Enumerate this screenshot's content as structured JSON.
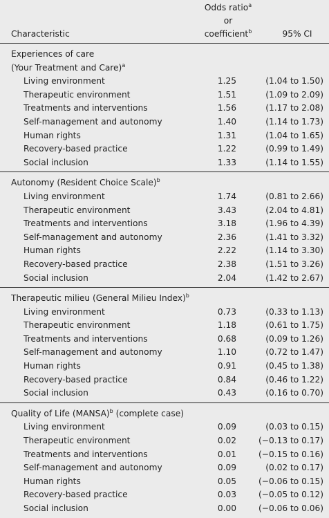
{
  "header": {
    "characteristic": "Characteristic",
    "estimate": [
      [
        {
          "text": "Odds ratio"
        },
        {
          "sup": "a"
        }
      ],
      [
        {
          "text": "or"
        }
      ],
      [
        {
          "text": "coefficient"
        },
        {
          "sup": "b"
        }
      ]
    ],
    "ci": "95% CI"
  },
  "sections": [
    {
      "title_lines": [
        [
          {
            "text": "Experiences of care"
          }
        ],
        [
          {
            "text": "(Your Treatment and Care)"
          },
          {
            "sup": "a"
          }
        ]
      ],
      "rows": [
        [
          "Living environment",
          "1.25",
          "(1.04 to 1.50)"
        ],
        [
          "Therapeutic environment",
          "1.51",
          "(1.09 to 2.09)"
        ],
        [
          "Treatments and interventions",
          "1.56",
          "(1.17 to 2.08)"
        ],
        [
          "Self-management and autonomy",
          "1.40",
          "(1.14 to 1.73)"
        ],
        [
          "Human rights",
          "1.31",
          "(1.04 to 1.65)"
        ],
        [
          "Recovery-based practice",
          "1.22",
          "(0.99 to 1.49)"
        ],
        [
          "Social inclusion",
          "1.33",
          "(1.14 to 1.55)"
        ]
      ]
    },
    {
      "title_lines": [
        [
          {
            "text": "Autonomy (Resident Choice Scale)"
          },
          {
            "sup": "b"
          }
        ]
      ],
      "rows": [
        [
          "Living environment",
          "1.74",
          "(0.81 to 2.66)"
        ],
        [
          "Therapeutic environment",
          "3.43",
          "(2.04 to 4.81)"
        ],
        [
          "Treatments and interventions",
          "3.18",
          "(1.96 to 4.39)"
        ],
        [
          "Self-management and autonomy",
          "2.36",
          "(1.41 to 3.32)"
        ],
        [
          "Human rights",
          "2.22",
          "(1.14 to 3.30)"
        ],
        [
          "Recovery-based practice",
          "2.38",
          "(1.51 to 3.26)"
        ],
        [
          "Social inclusion",
          "2.04",
          "(1.42 to 2.67)"
        ]
      ]
    },
    {
      "title_lines": [
        [
          {
            "text": "Therapeutic milieu (General Milieu Index)"
          },
          {
            "sup": "b"
          }
        ]
      ],
      "rows": [
        [
          "Living environment",
          "0.73",
          "(0.33 to 1.13)"
        ],
        [
          "Therapeutic environment",
          "1.18",
          "(0.61 to 1.75)"
        ],
        [
          "Treatments and interventions",
          "0.68",
          "(0.09 to 1.26)"
        ],
        [
          "Self-management and autonomy",
          "1.10",
          "(0.72 to 1.47)"
        ],
        [
          "Human rights",
          "0.91",
          "(0.45 to 1.38)"
        ],
        [
          "Recovery-based practice",
          "0.84",
          "(0.46 to 1.22)"
        ],
        [
          "Social inclusion",
          "0.43",
          "(0.16 to 0.70)"
        ]
      ]
    },
    {
      "title_lines": [
        [
          {
            "text": "Quality of Life (MANSA)"
          },
          {
            "sup": "b"
          },
          {
            "text": " (complete case)"
          }
        ]
      ],
      "rows": [
        [
          "Living environment",
          "0.09",
          "(0.03 to 0.15)"
        ],
        [
          "Therapeutic environment",
          "0.02",
          "(−0.13 to 0.17)"
        ],
        [
          "Treatments and interventions",
          "0.01",
          "(−0.15 to 0.16)"
        ],
        [
          "Self-management and autonomy",
          "0.09",
          "(0.02 to 0.17)"
        ],
        [
          "Human rights",
          "0.05",
          "(−0.06 to 0.15)"
        ],
        [
          "Recovery-based practice",
          "0.03",
          "(−0.05 to 0.12)"
        ],
        [
          "Social inclusion",
          "0.00",
          "(−0.06 to 0.06)"
        ]
      ]
    }
  ]
}
